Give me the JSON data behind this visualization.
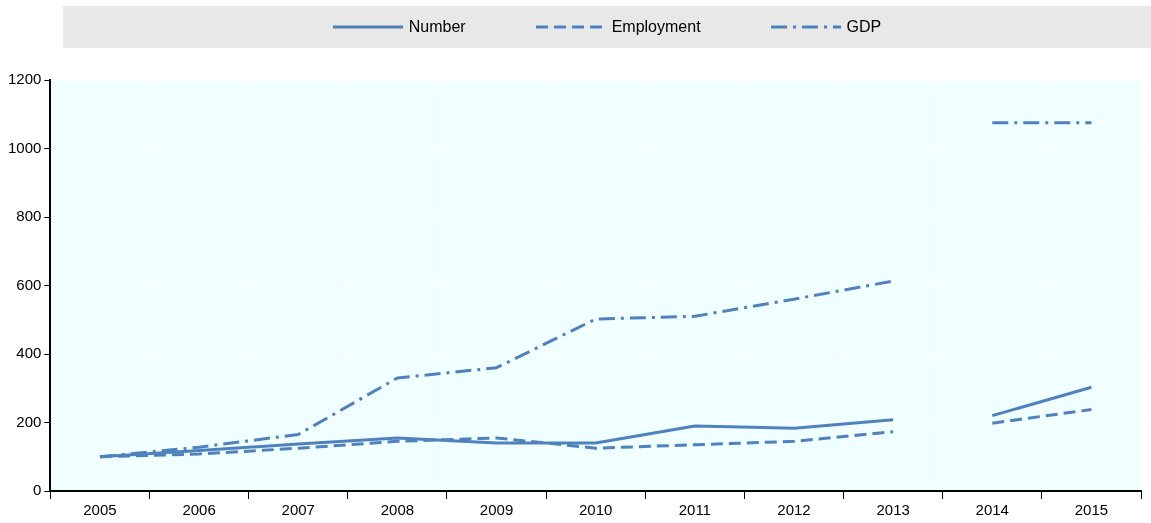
{
  "chart_data": {
    "type": "line",
    "categories": [
      "2005",
      "2006",
      "2007",
      "2008",
      "2009",
      "2010",
      "2011",
      "2012",
      "2013",
      "2014",
      "2015"
    ],
    "series": [
      {
        "name": "Number",
        "color": "#4f81bd",
        "line_style": "solid",
        "values": [
          100,
          118,
          137,
          155,
          140,
          140,
          190,
          183,
          208,
          null,
          null
        ]
      },
      {
        "name": "Employment",
        "color": "#4f81bd",
        "line_style": "dashed",
        "values": [
          100,
          108,
          125,
          145,
          155,
          125,
          135,
          145,
          173,
          null,
          null
        ]
      },
      {
        "name": "GDP",
        "color": "#4f81bd",
        "line_style": "dashdot",
        "values": [
          100,
          128,
          165,
          330,
          360,
          502,
          510,
          560,
          613,
          null,
          null
        ]
      },
      {
        "color": "#4f81bd",
        "line_style": "solid",
        "values": [
          null,
          null,
          null,
          null,
          null,
          null,
          null,
          null,
          null,
          220,
          303
        ]
      },
      {
        "color": "#4f81bd",
        "line_style": "dashed",
        "values": [
          null,
          null,
          null,
          null,
          null,
          null,
          null,
          null,
          null,
          198,
          238
        ]
      },
      {
        "color": "#4f81bd",
        "line_style": "dashdot",
        "values": [
          null,
          null,
          null,
          null,
          null,
          null,
          null,
          null,
          null,
          1075,
          1075
        ]
      }
    ],
    "ylim": [
      0,
      1200
    ],
    "yticks": [
      0,
      200,
      400,
      600,
      800,
      1000,
      1200
    ],
    "grid": true,
    "legend": "top",
    "marker": "none"
  }
}
